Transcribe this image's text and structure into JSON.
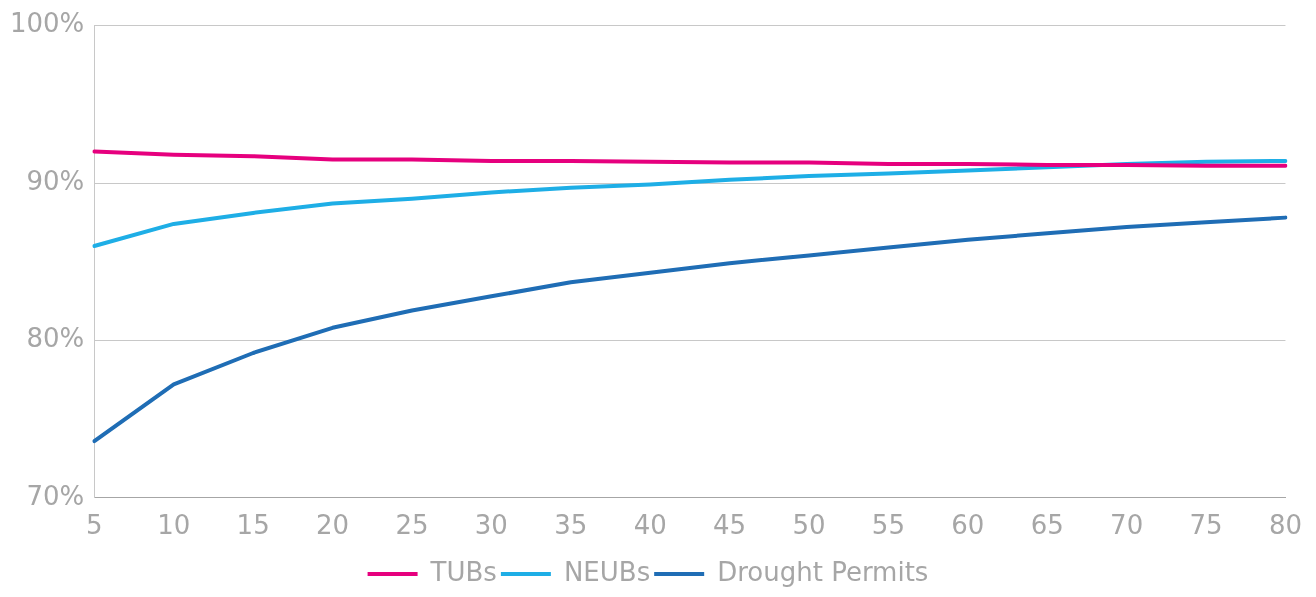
{
  "chart_data": {
    "type": "line",
    "categories": [
      "5",
      "10",
      "15",
      "20",
      "25",
      "30",
      "35",
      "40",
      "45",
      "50",
      "55",
      "60",
      "65",
      "70",
      "75",
      "80"
    ],
    "series": [
      {
        "name": "TUBs",
        "color": "#e6007e",
        "values": [
          92.0,
          91.8,
          91.7,
          91.5,
          91.5,
          91.4,
          91.4,
          91.35,
          91.3,
          91.3,
          91.2,
          91.2,
          91.15,
          91.15,
          91.1,
          91.1
        ]
      },
      {
        "name": "NEUBs",
        "color": "#1eaee6",
        "values": [
          86.0,
          87.4,
          88.1,
          88.7,
          89.0,
          89.4,
          89.7,
          89.9,
          90.2,
          90.45,
          90.6,
          90.8,
          91.0,
          91.2,
          91.35,
          91.4
        ]
      },
      {
        "name": "Drought Permits",
        "color": "#1f6db5",
        "values": [
          73.6,
          77.2,
          79.2,
          80.8,
          81.9,
          82.8,
          83.7,
          84.3,
          84.9,
          85.4,
          85.9,
          86.4,
          86.8,
          87.2,
          87.5,
          87.8
        ]
      }
    ],
    "ylim": [
      70,
      100
    ],
    "yticks": [
      {
        "value": 70,
        "label": "70%"
      },
      {
        "value": 80,
        "label": "80%"
      },
      {
        "value": 90,
        "label": "90%"
      },
      {
        "value": 100,
        "label": "100%"
      }
    ],
    "grid": "y",
    "legend": "bottom",
    "marker": "none",
    "line_style": "solid"
  }
}
